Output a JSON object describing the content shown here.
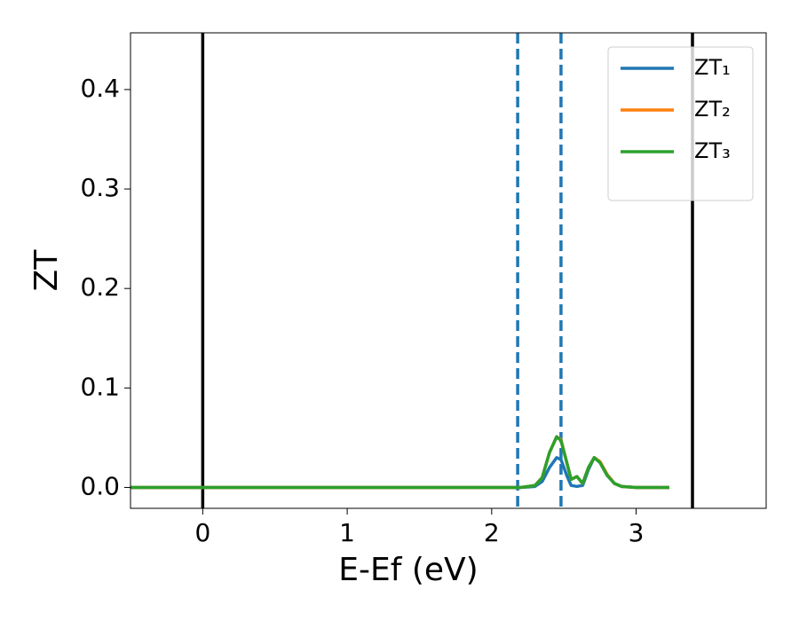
{
  "chart_data": {
    "type": "line",
    "xlabel": "E-Ef (eV)",
    "ylabel": "ZT",
    "x": [
      -0.5,
      0,
      0.5,
      1,
      1.5,
      2,
      2.2,
      2.3,
      2.35,
      2.4,
      2.45,
      2.48,
      2.52,
      2.55,
      2.59,
      2.63,
      2.67,
      2.71,
      2.75,
      2.8,
      2.85,
      2.9,
      3.0,
      3.23
    ],
    "series": [
      {
        "name": "ZT₁",
        "color": "#1f77b4",
        "values": [
          0,
          0,
          0,
          0,
          0,
          0,
          0,
          0.001,
          0.006,
          0.02,
          0.03,
          0.028,
          0.012,
          0.002,
          0.001,
          0.002,
          0.018,
          0.03,
          0.025,
          0.012,
          0.004,
          0.001,
          0,
          0
        ]
      },
      {
        "name": "ZT₂",
        "color": "#ff7f0e",
        "values": [
          0,
          0,
          0,
          0,
          0,
          0,
          0,
          0.002,
          0.01,
          0.035,
          0.051,
          0.048,
          0.025,
          0.008,
          0.011,
          0.004,
          0.02,
          0.03,
          0.026,
          0.013,
          0.004,
          0.001,
          0,
          0
        ]
      },
      {
        "name": "ZT₃",
        "color": "#2ca02c",
        "values": [
          0,
          0,
          0,
          0,
          0,
          0,
          0,
          0.002,
          0.01,
          0.035,
          0.051,
          0.047,
          0.025,
          0.008,
          0.011,
          0.004,
          0.02,
          0.03,
          0.025,
          0.012,
          0.004,
          0.001,
          0,
          0
        ]
      }
    ],
    "vlines": [
      {
        "x": 0,
        "color": "#000000",
        "style": "solid"
      },
      {
        "x": 3.39,
        "color": "#000000",
        "style": "solid"
      },
      {
        "x": 2.18,
        "color": "#1f77b4",
        "style": "dashed"
      },
      {
        "x": 2.48,
        "color": "#1f77b4",
        "style": "dashed"
      }
    ],
    "xlim": [
      -0.5,
      3.9
    ],
    "ylim": [
      -0.021,
      0.457
    ],
    "xticks": [
      0,
      1,
      2,
      3
    ],
    "yticks": [
      {
        "value": 0,
        "label": "0.0"
      },
      0.1,
      0.2,
      0.3,
      0.4
    ],
    "legend": "upper right"
  }
}
